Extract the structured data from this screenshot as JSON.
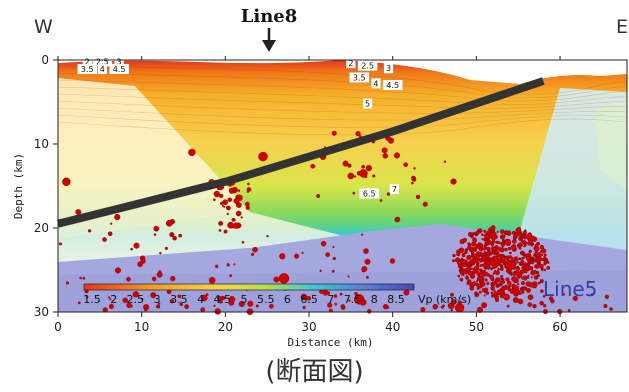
{
  "labels": {
    "west": "W",
    "east": "E",
    "line8": "Line8",
    "line5": "Line5",
    "caption": "(断面図)"
  },
  "colors": {
    "fault": "#333333",
    "quake": "#d40000",
    "deep": "#9fa3dd",
    "cyan": "#22ccee",
    "orange": "#f5a020",
    "red": "#e23a10"
  },
  "chart_data": {
    "type": "scatter",
    "title": "",
    "xlabel": "Distance (km)",
    "ylabel": "Depth (km)",
    "xlim": [
      0,
      68
    ],
    "ylim": [
      0,
      30
    ],
    "y_inverted": true,
    "grid": false,
    "xticks": [
      0,
      10,
      20,
      30,
      40,
      50,
      60
    ],
    "yticks": [
      0,
      10,
      20,
      30
    ],
    "fault_line": [
      [
        0,
        19.5
      ],
      [
        20,
        14.5
      ],
      [
        40,
        8.5
      ],
      [
        58,
        2.5
      ]
    ],
    "velocity_contour_labels": [
      {
        "x": 3.5,
        "y": 0.3,
        "text": "2"
      },
      {
        "x": 5.3,
        "y": 0.3,
        "text": "2.5"
      },
      {
        "x": 7.3,
        "y": 0.3,
        "text": "3"
      },
      {
        "x": 3.5,
        "y": 1.2,
        "text": "3.5"
      },
      {
        "x": 5.3,
        "y": 1.2,
        "text": "4"
      },
      {
        "x": 7.3,
        "y": 1.2,
        "text": "4.5"
      },
      {
        "x": 35,
        "y": 0.5,
        "text": "2"
      },
      {
        "x": 37,
        "y": 0.8,
        "text": "2.5"
      },
      {
        "x": 39.5,
        "y": 1.1,
        "text": "3"
      },
      {
        "x": 36,
        "y": 2.2,
        "text": "3.5"
      },
      {
        "x": 38,
        "y": 2.9,
        "text": "4"
      },
      {
        "x": 40,
        "y": 3.1,
        "text": "4.5"
      },
      {
        "x": 37,
        "y": 5.3,
        "text": "5"
      },
      {
        "x": 37.2,
        "y": 16,
        "text": "6.5"
      },
      {
        "x": 40.2,
        "y": 15.5,
        "text": "7"
      }
    ],
    "colorbar": {
      "label": "Vp (km/s)",
      "ticks": [
        "1.5",
        "2",
        "2.5",
        "3",
        "3.5",
        "4",
        "4.5",
        "5",
        "5.5",
        "6",
        "6.5",
        "7",
        "7.5",
        "8",
        "8.5"
      ]
    }
  }
}
